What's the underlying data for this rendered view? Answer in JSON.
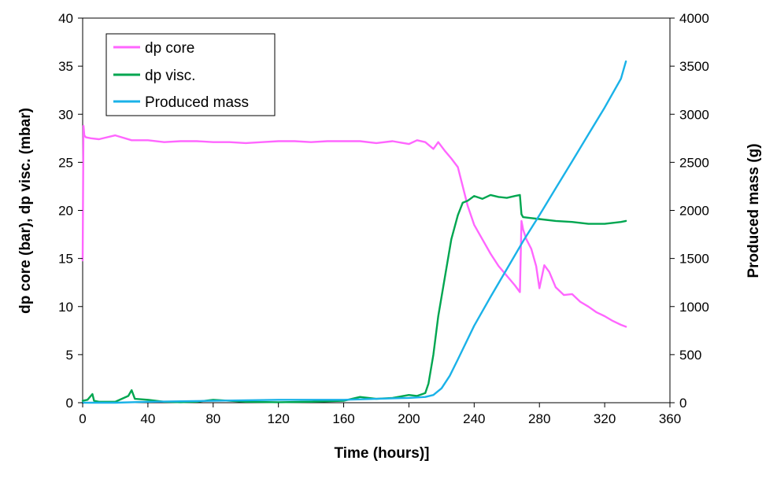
{
  "chart_data": {
    "type": "line",
    "title": "",
    "xlabel": "Time (hours)]",
    "ylabel_left": "dp core (bar), dp visc. (mbar)",
    "ylabel_right": "Produced mass (g)",
    "xlim": [
      0,
      360
    ],
    "ylim_left": [
      0,
      40
    ],
    "ylim_right": [
      0,
      4000
    ],
    "x_ticks": [
      0,
      40,
      80,
      120,
      160,
      200,
      240,
      280,
      320,
      360
    ],
    "y_left_ticks": [
      0,
      5,
      10,
      15,
      20,
      25,
      30,
      35,
      40
    ],
    "y_right_ticks": [
      0,
      500,
      1000,
      1500,
      2000,
      2500,
      3000,
      3500,
      4000
    ],
    "grid": false,
    "legend_position": "top-left",
    "series": [
      {
        "name": "dp core",
        "axis": "left",
        "color": "#ff66ff",
        "x": [
          0,
          0.5,
          1,
          2,
          5,
          10,
          20,
          30,
          40,
          50,
          60,
          70,
          80,
          90,
          100,
          110,
          120,
          130,
          140,
          150,
          160,
          170,
          180,
          190,
          200,
          205,
          210,
          215,
          218,
          222,
          226,
          230,
          233,
          236,
          240,
          245,
          250,
          255,
          260,
          265,
          268,
          269,
          270,
          272,
          275,
          278,
          280,
          283,
          286,
          290,
          295,
          300,
          305,
          310,
          315,
          320,
          325,
          330,
          333
        ],
        "y": [
          14.8,
          28.8,
          27.8,
          27.6,
          27.5,
          27.4,
          27.8,
          27.3,
          27.3,
          27.1,
          27.2,
          27.2,
          27.1,
          27.1,
          27.0,
          27.1,
          27.2,
          27.2,
          27.1,
          27.2,
          27.2,
          27.2,
          27.0,
          27.2,
          26.9,
          27.3,
          27.1,
          26.4,
          27.1,
          26.2,
          25.4,
          24.5,
          22.5,
          20.5,
          18.5,
          17.0,
          15.5,
          14.2,
          13.2,
          12.2,
          11.5,
          18.9,
          18.0,
          17.0,
          16.0,
          14.2,
          11.9,
          14.3,
          13.6,
          12.0,
          11.2,
          11.3,
          10.5,
          10.0,
          9.4,
          9.0,
          8.5,
          8.1,
          7.9
        ]
      },
      {
        "name": "dp visc.",
        "axis": "left",
        "color": "#00a650",
        "x": [
          0,
          3,
          6,
          7,
          10,
          20,
          28,
          30,
          32,
          40,
          50,
          60,
          70,
          80,
          100,
          120,
          140,
          160,
          170,
          180,
          190,
          200,
          205,
          210,
          212,
          215,
          218,
          222,
          226,
          230,
          233,
          236,
          240,
          245,
          250,
          255,
          260,
          265,
          268,
          269,
          270,
          275,
          280,
          290,
          300,
          310,
          320,
          330,
          333
        ],
        "y": [
          0.2,
          0.3,
          0.9,
          0.2,
          0.1,
          0.1,
          0.7,
          1.3,
          0.4,
          0.3,
          0.1,
          0.05,
          0.1,
          0.3,
          0.1,
          0.05,
          0.1,
          0.2,
          0.6,
          0.4,
          0.5,
          0.8,
          0.7,
          1.0,
          2.0,
          5.0,
          9.0,
          13.0,
          17.0,
          19.5,
          20.8,
          21.0,
          21.5,
          21.2,
          21.6,
          21.4,
          21.3,
          21.5,
          21.6,
          19.6,
          19.3,
          19.2,
          19.1,
          18.9,
          18.8,
          18.6,
          18.6,
          18.8,
          18.9
        ]
      },
      {
        "name": "Produced mass",
        "axis": "right",
        "color": "#1ab2e8",
        "x": [
          0,
          20,
          40,
          80,
          120,
          160,
          180,
          200,
          210,
          215,
          220,
          225,
          230,
          240,
          250,
          260,
          270,
          280,
          290,
          300,
          310,
          320,
          330,
          333
        ],
        "y": [
          0,
          0,
          10,
          20,
          30,
          30,
          40,
          50,
          60,
          80,
          150,
          280,
          450,
          800,
          1100,
          1390,
          1680,
          1950,
          2230,
          2510,
          2790,
          3070,
          3370,
          3550
        ]
      }
    ]
  }
}
